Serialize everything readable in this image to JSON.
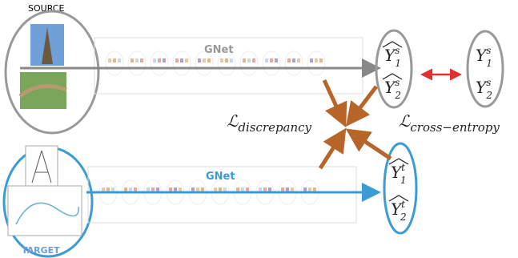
{
  "labels": {
    "source": "SOURCE",
    "target": "TARGET"
  },
  "networks": [
    {
      "label": "GNet"
    },
    {
      "label": "GNet"
    }
  ],
  "source_predictions": [
    {
      "base": "Y",
      "sub": "1",
      "sup": "s"
    },
    {
      "base": "Y",
      "sub": "2",
      "sup": "s"
    }
  ],
  "source_ground_truth": [
    {
      "base": "Y",
      "sub": "1",
      "sup": "s"
    },
    {
      "base": "Y",
      "sub": "2",
      "sup": "s"
    }
  ],
  "target_predictions": [
    {
      "base": "Y",
      "sub": "1",
      "sup": "t"
    },
    {
      "base": "Y",
      "sub": "2",
      "sup": "t"
    }
  ],
  "losses": {
    "discrepancy": {
      "symbol": "ℒ",
      "sub": "discrepancy"
    },
    "cross_entropy": {
      "symbol": "ℒ",
      "sub": "cross−entropy"
    }
  }
}
